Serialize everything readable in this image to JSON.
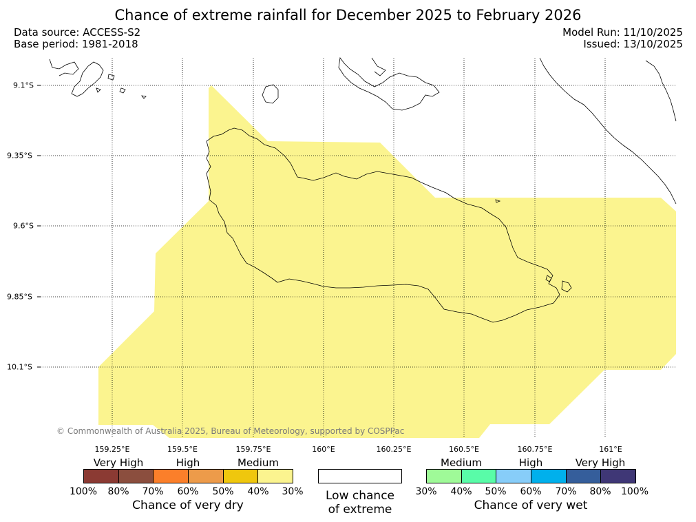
{
  "title": "Chance of extreme rainfall for December 2025 to February 2026",
  "data_source": "Data source: ACCESS-S2",
  "base_period": "Base period: 1981-2018",
  "model_run": "Model Run: 11/10/2025",
  "issued": "Issued: 13/10/2025",
  "copyright": "© Commonwealth of Australia 2025, Bureau of Meteorology, supported by COSPPac",
  "map": {
    "longitude_labels": [
      "159.25°E",
      "159.5°E",
      "159.75°E",
      "160°E",
      "160.25°E",
      "160.5°E",
      "160.75°E",
      "161°E"
    ],
    "latitude_labels": [
      "9.1°S",
      "9.35°S",
      "9.6°S",
      "9.85°S",
      "10.1°S"
    ],
    "shaded_category": "Medium (chance of very dry, 30–40%)",
    "shaded_color": "#fbf48f",
    "coastline_color": "#000000",
    "gridline_style": "dotted"
  },
  "legend": {
    "dry": {
      "title": "Chance of very dry",
      "categories": [
        "Very High",
        "High",
        "Medium"
      ],
      "ticks": [
        "100%",
        "80%",
        "70%",
        "60%",
        "50%",
        "40%",
        "30%"
      ],
      "colors": [
        "#8b3a33",
        "#8b4e3e",
        "#fb7f2a",
        "#ed9b4a",
        "#efc70d",
        "#fbf48f"
      ]
    },
    "low": {
      "line1": "Low chance",
      "line2": "of extreme",
      "color": "#ffffff"
    },
    "wet": {
      "title": "Chance of very wet",
      "categories": [
        "Medium",
        "High",
        "Very High"
      ],
      "ticks": [
        "30%",
        "40%",
        "50%",
        "60%",
        "70%",
        "80%",
        "100%"
      ],
      "colors": [
        "#9ffa98",
        "#59fca8",
        "#87cdf9",
        "#00b0ec",
        "#355e9b",
        "#3f3776"
      ]
    }
  }
}
